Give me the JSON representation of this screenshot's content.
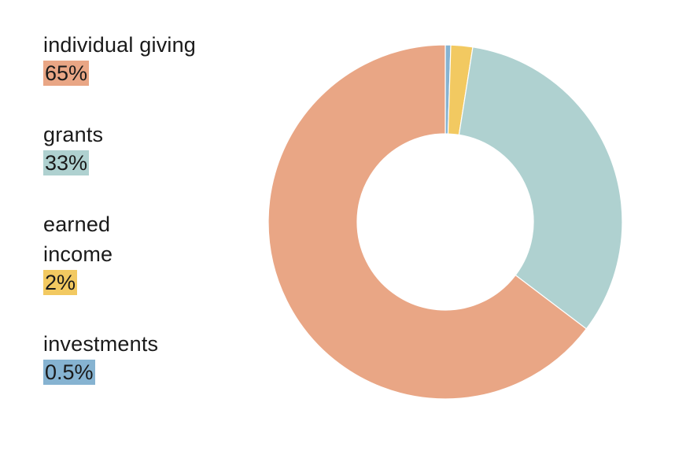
{
  "chart_data": {
    "type": "pie",
    "variant": "donut",
    "categories": [
      "individual giving",
      "grants",
      "earned income",
      "investments"
    ],
    "values": [
      65,
      33,
      2,
      0.5
    ],
    "value_labels": [
      "65%",
      "33%",
      "2%",
      "0.5%"
    ],
    "colors": [
      "#e9a685",
      "#afd1d0",
      "#f2c961",
      "#86b3d1"
    ],
    "title": "",
    "legend_placement": "left",
    "start_angle_deg": 0,
    "direction": "counterclockwise"
  }
}
